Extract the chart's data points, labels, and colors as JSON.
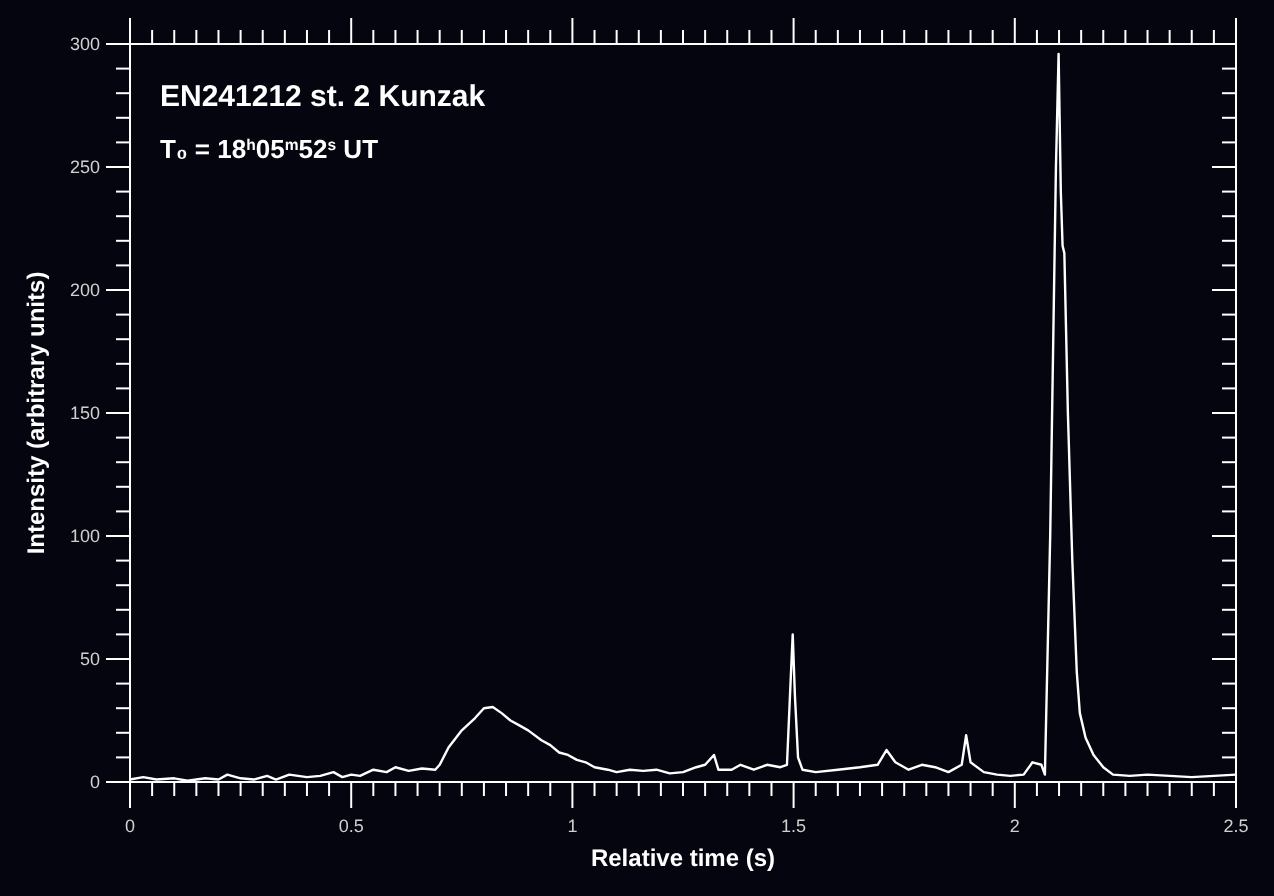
{
  "chart_data": {
    "type": "line",
    "title": "EN241212 st. 2 Kunzak",
    "annotations": [
      "T₀ = 18$^{h}$05$^{m}$52$^{s}$ UT"
    ],
    "xlabel": "Relative time (s)",
    "ylabel": "Intensity (arbitrary units)",
    "xlim": [
      0,
      2.5
    ],
    "ylim": [
      0,
      300
    ],
    "xticks": [
      0,
      {
        "value": 0.05,
        "label": null
      },
      {
        "value": 0.1,
        "label": null
      },
      {
        "value": 0.15,
        "label": null
      },
      {
        "value": 0.2,
        "label": null
      },
      {
        "value": 0.25,
        "label": null
      },
      {
        "value": 0.3,
        "label": null
      },
      {
        "value": 0.35,
        "label": null
      },
      {
        "value": 0.4,
        "label": null
      },
      {
        "value": 0.45,
        "label": null
      },
      0.5,
      {
        "value": 0.55,
        "label": null
      },
      {
        "value": 0.6,
        "label": null
      },
      {
        "value": 0.65,
        "label": null
      },
      {
        "value": 0.7,
        "label": null
      },
      {
        "value": 0.75,
        "label": null
      },
      {
        "value": 0.8,
        "label": null
      },
      {
        "value": 0.85,
        "label": null
      },
      {
        "value": 0.9,
        "label": null
      },
      {
        "value": 0.95,
        "label": null
      },
      1,
      {
        "value": 1.05,
        "label": null
      },
      {
        "value": 1.1,
        "label": null
      },
      {
        "value": 1.15,
        "label": null
      },
      {
        "value": 1.2,
        "label": null
      },
      {
        "value": 1.25,
        "label": null
      },
      {
        "value": 1.3,
        "label": null
      },
      {
        "value": 1.35,
        "label": null
      },
      {
        "value": 1.4,
        "label": null
      },
      {
        "value": 1.45,
        "label": null
      },
      1.5,
      {
        "value": 1.55,
        "label": null
      },
      {
        "value": 1.6,
        "label": null
      },
      {
        "value": 1.65,
        "label": null
      },
      {
        "value": 1.7,
        "label": null
      },
      {
        "value": 1.75,
        "label": null
      },
      {
        "value": 1.8,
        "label": null
      },
      {
        "value": 1.85,
        "label": null
      },
      {
        "value": 1.9,
        "label": null
      },
      {
        "value": 1.95,
        "label": null
      },
      2,
      {
        "value": 2.05,
        "label": null
      },
      {
        "value": 2.1,
        "label": null
      },
      {
        "value": 2.15,
        "label": null
      },
      {
        "value": 2.2,
        "label": null
      },
      {
        "value": 2.25,
        "label": null
      },
      {
        "value": 2.3,
        "label": null
      },
      {
        "value": 2.35,
        "label": null
      },
      {
        "value": 2.4,
        "label": null
      },
      {
        "value": 2.45,
        "label": null
      },
      2.5
    ],
    "yticks": [
      0,
      {
        "value": 10,
        "label": null
      },
      {
        "value": 20,
        "label": null
      },
      {
        "value": 30,
        "label": null
      },
      {
        "value": 40,
        "label": null
      },
      50,
      {
        "value": 60,
        "label": null
      },
      {
        "value": 70,
        "label": null
      },
      {
        "value": 80,
        "label": null
      },
      {
        "value": 90,
        "label": null
      },
      100,
      {
        "value": 110,
        "label": null
      },
      {
        "value": 120,
        "label": null
      },
      {
        "value": 130,
        "label": null
      },
      {
        "value": 140,
        "label": null
      },
      150,
      {
        "value": 160,
        "label": null
      },
      {
        "value": 170,
        "label": null
      },
      {
        "value": 180,
        "label": null
      },
      {
        "value": 190,
        "label": null
      },
      200,
      {
        "value": 210,
        "label": null
      },
      {
        "value": 220,
        "label": null
      },
      {
        "value": 230,
        "label": null
      },
      {
        "value": 240,
        "label": null
      },
      250,
      {
        "value": 260,
        "label": null
      },
      {
        "value": 270,
        "label": null
      },
      {
        "value": 280,
        "label": null
      },
      {
        "value": 290,
        "label": null
      },
      300
    ],
    "grid": false,
    "marker": "none",
    "line_style": "solid",
    "series": [
      {
        "color": "#ffffff",
        "x": [
          0,
          0.03,
          0.06,
          0.1,
          0.13,
          0.17,
          0.2,
          0.22,
          0.25,
          0.28,
          0.31,
          0.33,
          0.36,
          0.4,
          0.43,
          0.46,
          0.48,
          0.5,
          0.52,
          0.55,
          0.58,
          0.6,
          0.63,
          0.66,
          0.69,
          0.7,
          0.72,
          0.75,
          0.78,
          0.8,
          0.82,
          0.84,
          0.86,
          0.88,
          0.9,
          0.93,
          0.95,
          0.97,
          0.99,
          1.01,
          1.03,
          1.05,
          1.08,
          1.1,
          1.13,
          1.16,
          1.19,
          1.22,
          1.25,
          1.28,
          1.3,
          1.32,
          1.33,
          1.36,
          1.38,
          1.41,
          1.44,
          1.47,
          1.485,
          1.493,
          1.498,
          1.503,
          1.51,
          1.52,
          1.55,
          1.6,
          1.65,
          1.69,
          1.71,
          1.73,
          1.76,
          1.79,
          1.82,
          1.85,
          1.88,
          1.89,
          1.9,
          1.93,
          1.96,
          1.99,
          2.02,
          2.04,
          2.06,
          2.068,
          2.08,
          2.093,
          2.099,
          2.104,
          2.108,
          2.112,
          2.12,
          2.13,
          2.14,
          2.147,
          2.16,
          2.178,
          2.2,
          2.222,
          2.26,
          2.3,
          2.35,
          2.4,
          2.45,
          2.5
        ],
        "values": [
          1,
          2,
          1,
          1.5,
          0.5,
          1.5,
          1,
          3,
          1.5,
          1,
          2.5,
          1,
          3,
          2,
          2.5,
          4,
          2,
          3,
          2.5,
          5,
          4,
          6,
          4.5,
          5.5,
          5,
          7,
          14,
          21,
          26,
          30,
          30.5,
          28,
          25,
          23,
          21,
          17,
          15,
          12,
          11,
          9,
          8,
          6,
          5,
          4,
          5,
          4.5,
          5,
          3.5,
          4,
          6,
          7,
          11,
          5,
          5,
          7,
          5,
          7,
          6,
          7,
          40,
          60,
          35,
          10,
          5,
          4,
          5,
          6,
          7,
          13,
          8,
          5,
          7,
          6,
          4,
          7,
          19,
          8,
          4,
          3,
          2.5,
          3,
          8,
          7,
          3,
          100,
          250,
          296,
          240,
          218,
          215,
          150,
          90,
          45,
          28,
          18,
          11,
          6,
          3,
          2.5,
          3,
          2.5,
          2,
          2.5,
          3
        ]
      }
    ]
  }
}
